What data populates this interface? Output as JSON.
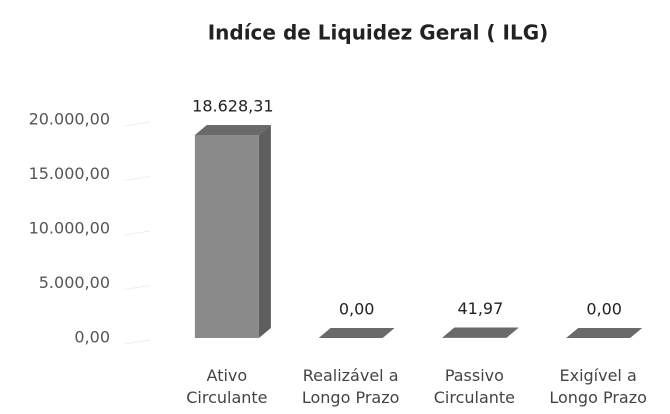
{
  "chart_data": {
    "type": "bar3d",
    "title": "Indíce de Liquidez Geral ( ILG)",
    "categories": [
      "Ativo Circulante",
      "Realizável a Longo Prazo",
      "Passivo Circulante",
      "Exigível a Longo Prazo"
    ],
    "values": [
      18628.31,
      0,
      41.97,
      0
    ],
    "value_labels": [
      "18.628,31",
      "0,00",
      "41,97",
      "0,00"
    ],
    "color": "#8a8a8a",
    "ylim": [
      0,
      20000
    ],
    "yticks": [
      {
        "value": 0,
        "label": "0,00"
      },
      {
        "value": 5000,
        "label": "5.000,00"
      },
      {
        "value": 10000,
        "label": "10.000,00"
      },
      {
        "value": 15000,
        "label": "15.000,00"
      },
      {
        "value": 20000,
        "label": "20.000,00"
      }
    ]
  }
}
